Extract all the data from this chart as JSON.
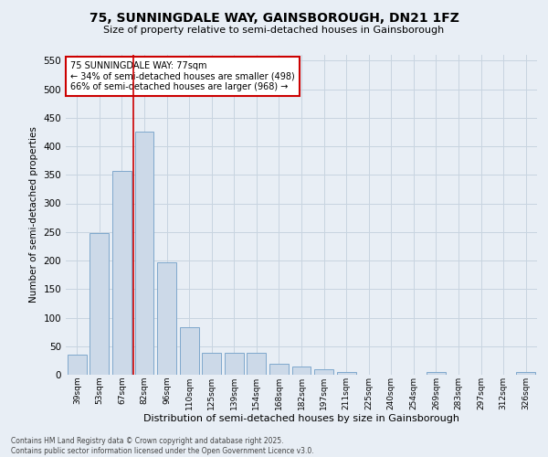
{
  "title_line1": "75, SUNNINGDALE WAY, GAINSBOROUGH, DN21 1FZ",
  "title_line2": "Size of property relative to semi-detached houses in Gainsborough",
  "xlabel": "Distribution of semi-detached houses by size in Gainsborough",
  "ylabel": "Number of semi-detached properties",
  "categories": [
    "39sqm",
    "53sqm",
    "67sqm",
    "82sqm",
    "96sqm",
    "110sqm",
    "125sqm",
    "139sqm",
    "154sqm",
    "168sqm",
    "182sqm",
    "197sqm",
    "211sqm",
    "225sqm",
    "240sqm",
    "254sqm",
    "269sqm",
    "283sqm",
    "297sqm",
    "312sqm",
    "326sqm"
  ],
  "values": [
    35,
    248,
    357,
    425,
    197,
    83,
    38,
    38,
    38,
    20,
    15,
    10,
    5,
    0,
    0,
    0,
    5,
    0,
    0,
    0,
    5
  ],
  "bar_color": "#ccd9e8",
  "bar_edge_color": "#7fa8cc",
  "red_line_x": 2.5,
  "annotation_title": "75 SUNNINGDALE WAY: 77sqm",
  "annotation_line1": "← 34% of semi-detached houses are smaller (498)",
  "annotation_line2": "66% of semi-detached houses are larger (968) →",
  "annotation_box_color": "#ffffff",
  "annotation_box_edge": "#cc0000",
  "red_line_color": "#cc0000",
  "grid_color": "#c8d4e0",
  "background_color": "#e8eef5",
  "ylim": [
    0,
    560
  ],
  "yticks": [
    0,
    50,
    100,
    150,
    200,
    250,
    300,
    350,
    400,
    450,
    500,
    550
  ],
  "footer_line1": "Contains HM Land Registry data © Crown copyright and database right 2025.",
  "footer_line2": "Contains public sector information licensed under the Open Government Licence v3.0."
}
